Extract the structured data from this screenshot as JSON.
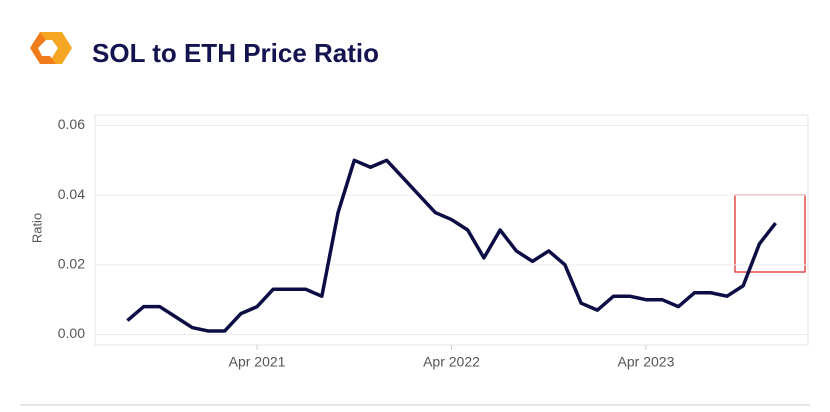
{
  "chart_data": {
    "type": "line",
    "title": "SOL to ETH Price Ratio",
    "y_label": "Ratio",
    "x": [
      "2020-08",
      "2020-09",
      "2020-10",
      "2020-11",
      "2020-12",
      "2021-01",
      "2021-02",
      "2021-03",
      "2021-04",
      "2021-05",
      "2021-06",
      "2021-07",
      "2021-08",
      "2021-09",
      "2021-10",
      "2021-11",
      "2021-12",
      "2022-01",
      "2022-02",
      "2022-03",
      "2022-04",
      "2022-05",
      "2022-06",
      "2022-07",
      "2022-08",
      "2022-09",
      "2022-10",
      "2022-11",
      "2022-12",
      "2023-01",
      "2023-02",
      "2023-03",
      "2023-04",
      "2023-05",
      "2023-06",
      "2023-07",
      "2023-08",
      "2023-09",
      "2023-10",
      "2023-11",
      "2023-12"
    ],
    "series": [
      {
        "name": "Ratio",
        "color": "#0d0d45",
        "values": [
          0.004,
          0.008,
          0.008,
          0.005,
          0.002,
          0.001,
          0.001,
          0.006,
          0.008,
          0.013,
          0.013,
          0.013,
          0.011,
          0.035,
          0.05,
          0.048,
          0.05,
          0.045,
          0.04,
          0.035,
          0.033,
          0.03,
          0.022,
          0.03,
          0.024,
          0.021,
          0.024,
          0.02,
          0.009,
          0.007,
          0.011,
          0.011,
          0.01,
          0.01,
          0.008,
          0.012,
          0.012,
          0.011,
          0.014,
          0.026,
          0.032
        ]
      }
    ],
    "xlim": [
      "2020-06",
      "2024-02"
    ],
    "xticks": [
      {
        "value": "2021-04",
        "label": "Apr 2021"
      },
      {
        "value": "2022-04",
        "label": "Apr 2022"
      },
      {
        "value": "2023-04",
        "label": "Apr 2023"
      }
    ],
    "ylim": [
      -0.003,
      0.063
    ],
    "yticks": [
      {
        "value": 0,
        "label": "0.00"
      },
      0.02,
      0.04,
      0.06
    ],
    "grid": true
  }
}
